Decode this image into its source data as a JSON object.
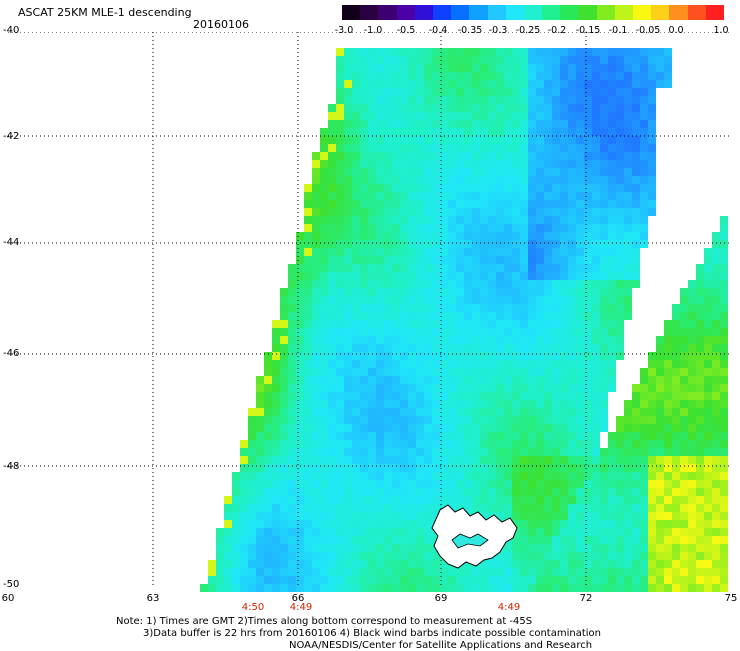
{
  "header": {
    "title": "ASCAT 25KM MLE-1 descending",
    "date": "20160106"
  },
  "colorbar": {
    "labels": [
      "-3.0",
      "-1.0",
      "-0.5",
      "-0.4",
      "-0.35",
      "-0.3",
      "-0.25",
      "-0.2",
      "-0.15",
      "-0.1",
      "-0.05",
      "0.0",
      "1.0"
    ],
    "colors": [
      "#1a0020",
      "#3a0060",
      "#5500aa",
      "#2030e0",
      "#1070ff",
      "#20b0ff",
      "#20e8f0",
      "#20f0a0",
      "#30e030",
      "#90f020",
      "#ffff10",
      "#ffa020",
      "#ff2020"
    ]
  },
  "map": {
    "lat_labels": [
      "-40",
      "-42",
      "-44",
      "-46",
      "-48",
      "-50"
    ],
    "lon_labels": [
      "60",
      "63",
      "66",
      "69",
      "72",
      "75"
    ],
    "lon_range": [
      60,
      75
    ],
    "lat_range": [
      -50,
      -40
    ],
    "grid": "dotted"
  },
  "time_labels": [
    "4:50",
    "4:49",
    "4:49"
  ],
  "notes": {
    "line1": "Note: 1) Times are GMT 2)Times along bottom correspond to measurement at -45S",
    "line2": "3)Data buffer is 22 hrs from 20160106 4) Black wind barbs indicate possible contamination",
    "line3": "NOAA/NESDIS/Center for Satellite Applications and Research"
  }
}
